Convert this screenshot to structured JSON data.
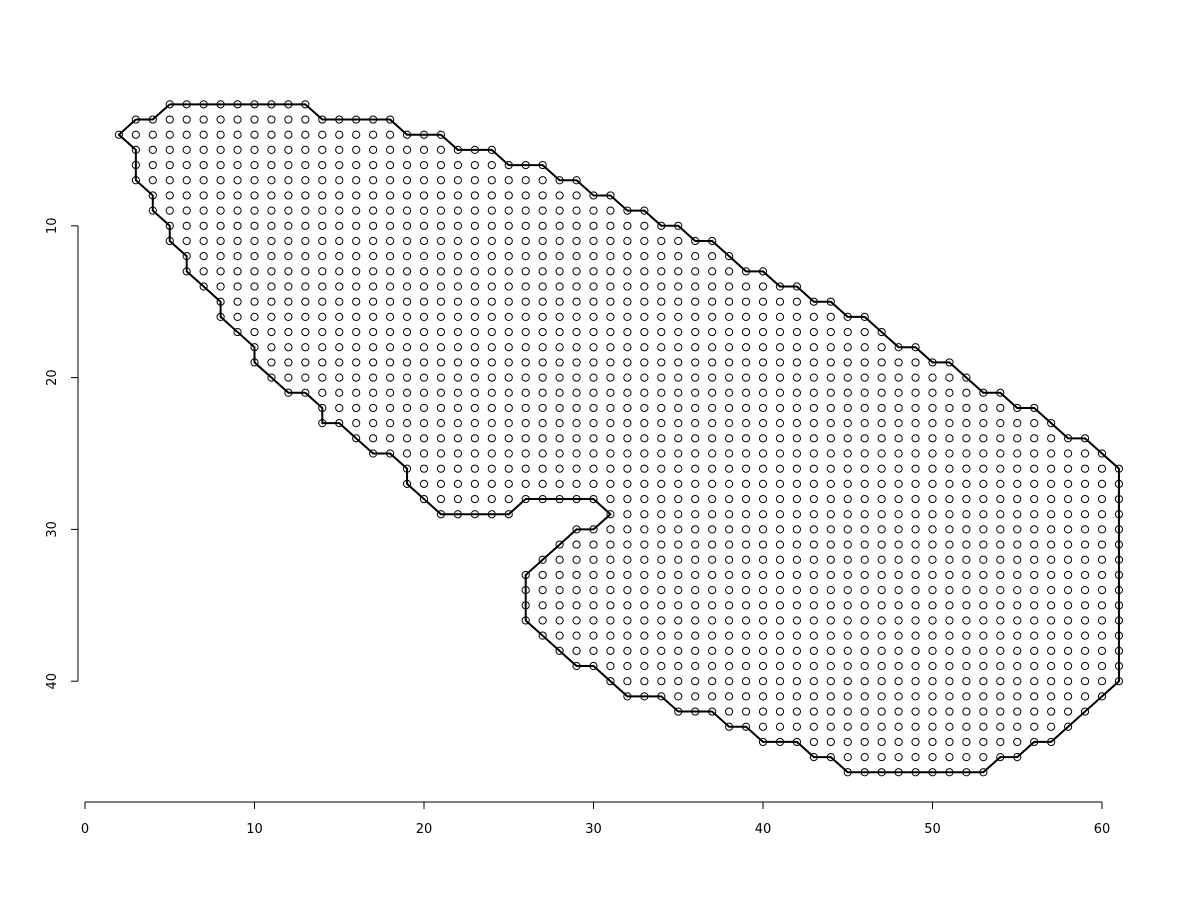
{
  "chart_data": {
    "type": "scatter",
    "title": "",
    "xlabel": "",
    "ylabel": "",
    "xlim": [
      0,
      61
    ],
    "ylim": [
      1,
      47
    ],
    "y_reversed": true,
    "grid": false,
    "legend": "none",
    "x_ticks": [
      0,
      10,
      20,
      30,
      40,
      50,
      60
    ],
    "x_tick_labels": [
      "0",
      "10",
      "20",
      "30",
      "40",
      "50",
      "60"
    ],
    "y_ticks": [
      10,
      20,
      30,
      40
    ],
    "y_tick_labels": [
      "10",
      "20",
      "30",
      "40"
    ],
    "point_marker": "open-circle",
    "series": [
      {
        "type": "boundary",
        "points": [
          [
            5,
            2
          ],
          [
            6,
            2
          ],
          [
            7,
            2
          ],
          [
            8,
            2
          ],
          [
            9,
            2
          ],
          [
            10,
            2
          ],
          [
            11,
            2
          ],
          [
            12,
            2
          ],
          [
            13,
            2
          ],
          [
            14,
            3
          ],
          [
            15,
            3
          ],
          [
            16,
            3
          ],
          [
            17,
            3
          ],
          [
            18,
            3
          ],
          [
            19,
            4
          ],
          [
            20,
            4
          ],
          [
            21,
            4
          ],
          [
            22,
            5
          ],
          [
            23,
            5
          ],
          [
            24,
            5
          ],
          [
            25,
            6
          ],
          [
            26,
            6
          ],
          [
            27,
            6
          ],
          [
            28,
            7
          ],
          [
            29,
            7
          ],
          [
            30,
            8
          ],
          [
            31,
            8
          ],
          [
            32,
            9
          ],
          [
            33,
            9
          ],
          [
            34,
            10
          ],
          [
            35,
            10
          ],
          [
            36,
            11
          ],
          [
            37,
            11
          ],
          [
            38,
            12
          ],
          [
            39,
            13
          ],
          [
            40,
            13
          ],
          [
            41,
            14
          ],
          [
            42,
            14
          ],
          [
            43,
            15
          ],
          [
            44,
            15
          ],
          [
            45,
            16
          ],
          [
            46,
            16
          ],
          [
            47,
            17
          ],
          [
            48,
            18
          ],
          [
            49,
            18
          ],
          [
            50,
            19
          ],
          [
            51,
            19
          ],
          [
            52,
            20
          ],
          [
            53,
            21
          ],
          [
            54,
            21
          ],
          [
            55,
            22
          ],
          [
            56,
            22
          ],
          [
            57,
            23
          ],
          [
            58,
            24
          ],
          [
            59,
            24
          ],
          [
            60,
            25
          ],
          [
            61,
            26
          ],
          [
            61,
            27
          ],
          [
            61,
            28
          ],
          [
            61,
            29
          ],
          [
            61,
            30
          ],
          [
            61,
            31
          ],
          [
            61,
            32
          ],
          [
            61,
            33
          ],
          [
            61,
            34
          ],
          [
            61,
            35
          ],
          [
            61,
            36
          ],
          [
            61,
            37
          ],
          [
            61,
            38
          ],
          [
            61,
            39
          ],
          [
            61,
            40
          ],
          [
            60,
            41
          ],
          [
            59,
            42
          ],
          [
            58,
            43
          ],
          [
            57,
            44
          ],
          [
            56,
            44
          ],
          [
            55,
            45
          ],
          [
            54,
            45
          ],
          [
            53,
            46
          ],
          [
            52,
            46
          ],
          [
            51,
            46
          ],
          [
            50,
            46
          ],
          [
            49,
            46
          ],
          [
            48,
            46
          ],
          [
            47,
            46
          ],
          [
            46,
            46
          ],
          [
            45,
            46
          ],
          [
            44,
            45
          ],
          [
            43,
            45
          ],
          [
            42,
            44
          ],
          [
            41,
            44
          ],
          [
            40,
            44
          ],
          [
            39,
            43
          ],
          [
            38,
            43
          ],
          [
            37,
            42
          ],
          [
            36,
            42
          ],
          [
            35,
            42
          ],
          [
            34,
            41
          ],
          [
            33,
            41
          ],
          [
            32,
            41
          ],
          [
            31,
            40
          ],
          [
            30,
            39
          ],
          [
            29,
            39
          ],
          [
            28,
            38
          ],
          [
            27,
            37
          ],
          [
            26,
            36
          ],
          [
            26,
            35
          ],
          [
            26,
            34
          ],
          [
            26,
            33
          ],
          [
            27,
            32
          ],
          [
            28,
            31
          ],
          [
            29,
            30
          ],
          [
            30,
            30
          ],
          [
            31,
            29
          ],
          [
            30,
            28
          ],
          [
            29,
            28
          ],
          [
            28,
            28
          ],
          [
            27,
            28
          ],
          [
            26,
            28
          ],
          [
            25,
            29
          ],
          [
            24,
            29
          ],
          [
            23,
            29
          ],
          [
            22,
            29
          ],
          [
            21,
            29
          ],
          [
            20,
            28
          ],
          [
            19,
            27
          ],
          [
            19,
            26
          ],
          [
            18,
            25
          ],
          [
            17,
            25
          ],
          [
            16,
            24
          ],
          [
            15,
            23
          ],
          [
            14,
            23
          ],
          [
            14,
            22
          ],
          [
            13,
            21
          ],
          [
            12,
            21
          ],
          [
            11,
            20
          ],
          [
            10,
            19
          ],
          [
            10,
            18
          ],
          [
            9,
            17
          ],
          [
            8,
            16
          ],
          [
            8,
            15
          ],
          [
            7,
            14
          ],
          [
            6,
            13
          ],
          [
            6,
            12
          ],
          [
            5,
            11
          ],
          [
            5,
            10
          ],
          [
            4,
            9
          ],
          [
            4,
            8
          ],
          [
            3,
            7
          ],
          [
            3,
            6
          ],
          [
            3,
            5
          ],
          [
            2,
            4
          ],
          [
            3,
            3
          ],
          [
            4,
            3
          ],
          [
            5,
            2
          ]
        ]
      }
    ]
  }
}
